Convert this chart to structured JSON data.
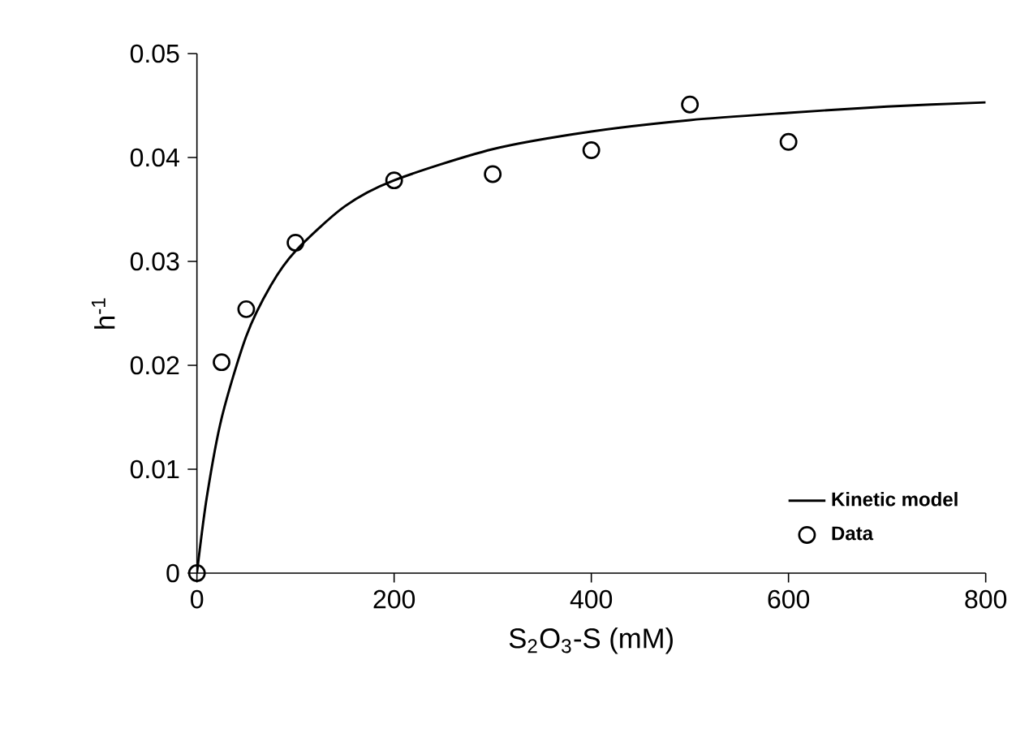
{
  "chart_data": {
    "type": "scatter",
    "xlabel": "S$_{2}$O$_{3}$-S (mM)",
    "ylabel": "h$^{-1}$",
    "xlim": [
      0,
      800
    ],
    "ylim": [
      0,
      0.05
    ],
    "xticks": [
      0,
      200,
      400,
      600,
      800
    ],
    "yticks": [
      0,
      0.01,
      0.02,
      0.03,
      0.04,
      0.05
    ],
    "grid": false,
    "legend": "bottom right",
    "series": [
      {
        "name": "Kinetic model",
        "type": "line",
        "color": "#000000",
        "marker": "none",
        "line_style": "solid",
        "x": [
          0,
          10,
          25,
          50,
          75,
          100,
          150,
          200,
          300,
          400,
          500,
          600,
          700,
          800
        ],
        "values": [
          0,
          0.0073,
          0.0149,
          0.0228,
          0.0277,
          0.031,
          0.0353,
          0.0378,
          0.0408,
          0.0425,
          0.0436,
          0.0443,
          0.0449,
          0.0453
        ]
      },
      {
        "name": "Data",
        "color": "#000000",
        "marker": "circle",
        "x": [
          0,
          25,
          50,
          100,
          200,
          300,
          400,
          500,
          600
        ],
        "values": [
          0,
          0.0203,
          0.0254,
          0.0318,
          0.0378,
          0.0384,
          0.0407,
          0.0451,
          0.0415
        ]
      }
    ]
  }
}
